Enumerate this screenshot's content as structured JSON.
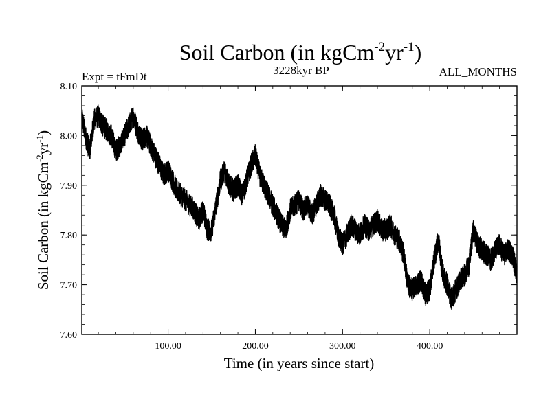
{
  "chart_data": {
    "type": "line",
    "title": {
      "main": "Soil Carbon (in kgCm",
      "sup1": "-2",
      "mid": "yr",
      "sup2": "-1",
      "end": ")"
    },
    "header": {
      "left": "Expt = tFmDt",
      "center": "3228kyr BP",
      "right": "ALL_MONTHS"
    },
    "xlabel": "Time (in years since start)",
    "ylabel": {
      "main": "Soil Carbon (in kgCm",
      "sup1": "-2",
      "mid": "yr",
      "sup2": "-1",
      "end": ")"
    },
    "xlim": [
      1,
      500
    ],
    "ylim": [
      7.6,
      8.1
    ],
    "x_ticks": [
      100,
      200,
      300,
      400
    ],
    "x_tick_labels": [
      "100.00",
      "200.00",
      "300.00",
      "400.00"
    ],
    "y_ticks": [
      7.6,
      7.7,
      7.8,
      7.9,
      8.0,
      8.1
    ],
    "y_tick_labels": [
      "7.60",
      "7.70",
      "7.80",
      "7.90",
      "8.00",
      "8.10"
    ],
    "series": [
      {
        "name": "Soil Carbon",
        "color": "#000000",
        "x": [
          1,
          5,
          10,
          15,
          20,
          25,
          30,
          35,
          40,
          45,
          50,
          55,
          60,
          65,
          70,
          75,
          80,
          85,
          90,
          95,
          100,
          105,
          110,
          115,
          120,
          125,
          130,
          135,
          140,
          145,
          150,
          155,
          160,
          165,
          170,
          175,
          180,
          185,
          190,
          195,
          200,
          205,
          210,
          215,
          220,
          225,
          230,
          235,
          240,
          245,
          250,
          255,
          260,
          265,
          270,
          275,
          280,
          285,
          290,
          295,
          300,
          305,
          310,
          315,
          320,
          325,
          330,
          335,
          340,
          345,
          350,
          355,
          360,
          365,
          370,
          375,
          380,
          385,
          390,
          395,
          400,
          405,
          410,
          415,
          420,
          425,
          430,
          435,
          440,
          445,
          450,
          455,
          460,
          465,
          470,
          475,
          480,
          485,
          490,
          495,
          500
        ],
        "values": [
          8.04,
          8.0,
          7.97,
          8.03,
          8.04,
          8.02,
          8.01,
          8.0,
          7.97,
          7.98,
          8.0,
          8.02,
          8.04,
          8.01,
          7.99,
          8.0,
          7.98,
          7.96,
          7.94,
          7.92,
          7.93,
          7.91,
          7.89,
          7.88,
          7.87,
          7.86,
          7.85,
          7.83,
          7.85,
          7.81,
          7.81,
          7.86,
          7.91,
          7.93,
          7.9,
          7.89,
          7.9,
          7.88,
          7.91,
          7.94,
          7.96,
          7.92,
          7.9,
          7.88,
          7.86,
          7.84,
          7.82,
          7.81,
          7.85,
          7.86,
          7.87,
          7.85,
          7.86,
          7.84,
          7.86,
          7.88,
          7.87,
          7.86,
          7.84,
          7.8,
          7.78,
          7.8,
          7.82,
          7.81,
          7.8,
          7.82,
          7.81,
          7.82,
          7.83,
          7.81,
          7.81,
          7.82,
          7.8,
          7.79,
          7.76,
          7.7,
          7.69,
          7.7,
          7.71,
          7.68,
          7.69,
          7.75,
          7.79,
          7.72,
          7.7,
          7.67,
          7.69,
          7.71,
          7.72,
          7.74,
          7.81,
          7.78,
          7.77,
          7.76,
          7.75,
          7.77,
          7.78,
          7.76,
          7.77,
          7.76,
          7.72
        ]
      }
    ]
  }
}
